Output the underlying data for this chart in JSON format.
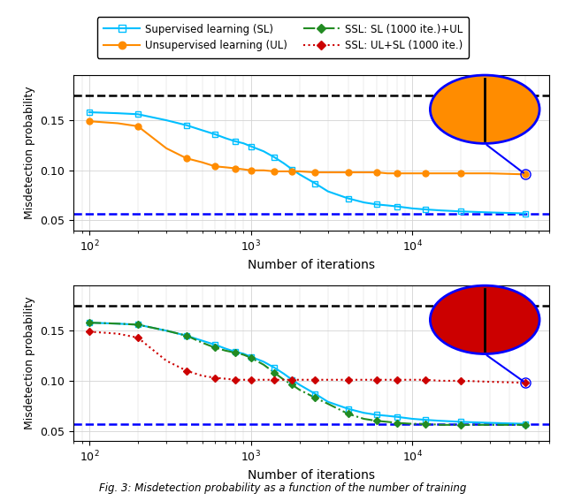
{
  "xlabel": "Number of iterations",
  "ylabel": "Misdetection probability",
  "figcaption": "Fig. 3: Misdetection probability as a function of the number of training",
  "hline_black": 0.175,
  "hline_blue": 0.057,
  "x_sl": [
    100,
    150,
    200,
    300,
    400,
    500,
    600,
    700,
    800,
    900,
    1000,
    1200,
    1400,
    1600,
    1800,
    2000,
    2500,
    3000,
    4000,
    5000,
    6000,
    7000,
    8000,
    10000,
    12000,
    15000,
    20000,
    30000,
    50000
  ],
  "y_sl": [
    0.158,
    0.157,
    0.156,
    0.15,
    0.145,
    0.14,
    0.136,
    0.132,
    0.129,
    0.127,
    0.124,
    0.119,
    0.113,
    0.107,
    0.101,
    0.096,
    0.087,
    0.079,
    0.072,
    0.068,
    0.066,
    0.065,
    0.064,
    0.062,
    0.061,
    0.06,
    0.059,
    0.058,
    0.057
  ],
  "x_ul": [
    100,
    150,
    200,
    300,
    400,
    500,
    600,
    700,
    800,
    900,
    1000,
    1200,
    1400,
    1600,
    1800,
    2000,
    2500,
    3000,
    4000,
    5000,
    6000,
    7000,
    8000,
    10000,
    12000,
    15000,
    20000,
    30000,
    50000
  ],
  "y_ul": [
    0.149,
    0.147,
    0.144,
    0.122,
    0.112,
    0.108,
    0.104,
    0.103,
    0.102,
    0.101,
    0.1,
    0.1,
    0.099,
    0.099,
    0.099,
    0.099,
    0.098,
    0.098,
    0.098,
    0.098,
    0.098,
    0.097,
    0.097,
    0.097,
    0.097,
    0.097,
    0.097,
    0.097,
    0.096
  ],
  "x_ssl_sl_ul": [
    100,
    150,
    200,
    300,
    400,
    500,
    600,
    700,
    800,
    900,
    1000,
    1200,
    1400,
    1600,
    1800,
    2000,
    2500,
    3000,
    4000,
    5000,
    6000,
    7000,
    8000,
    10000,
    12000,
    15000,
    20000,
    30000,
    50000
  ],
  "y_ssl_sl_ul": [
    0.158,
    0.157,
    0.156,
    0.15,
    0.145,
    0.138,
    0.133,
    0.13,
    0.128,
    0.126,
    0.123,
    0.116,
    0.108,
    0.101,
    0.096,
    0.091,
    0.083,
    0.077,
    0.067,
    0.062,
    0.06,
    0.059,
    0.058,
    0.057,
    0.057,
    0.056,
    0.056,
    0.056,
    0.056
  ],
  "x_ssl_ul_sl": [
    100,
    150,
    200,
    300,
    400,
    500,
    600,
    700,
    800,
    900,
    1000,
    1200,
    1400,
    1600,
    1800,
    2000,
    2500,
    3000,
    4000,
    5000,
    6000,
    7000,
    8000,
    10000,
    12000,
    15000,
    20000,
    30000,
    50000
  ],
  "y_ssl_ul_sl": [
    0.149,
    0.147,
    0.143,
    0.12,
    0.11,
    0.105,
    0.103,
    0.102,
    0.101,
    0.101,
    0.101,
    0.101,
    0.101,
    0.101,
    0.101,
    0.101,
    0.101,
    0.101,
    0.101,
    0.101,
    0.101,
    0.101,
    0.101,
    0.101,
    0.101,
    0.1,
    0.1,
    0.099,
    0.098
  ],
  "color_sl": "#00BFFF",
  "color_ul": "#FF8C00",
  "color_ssl_sl_ul": "#228B22",
  "color_ssl_ul_sl": "#CC0000",
  "xlim": [
    80,
    70000
  ],
  "ylim": [
    0.04,
    0.195
  ],
  "yticks": [
    0.05,
    0.1,
    0.15
  ]
}
